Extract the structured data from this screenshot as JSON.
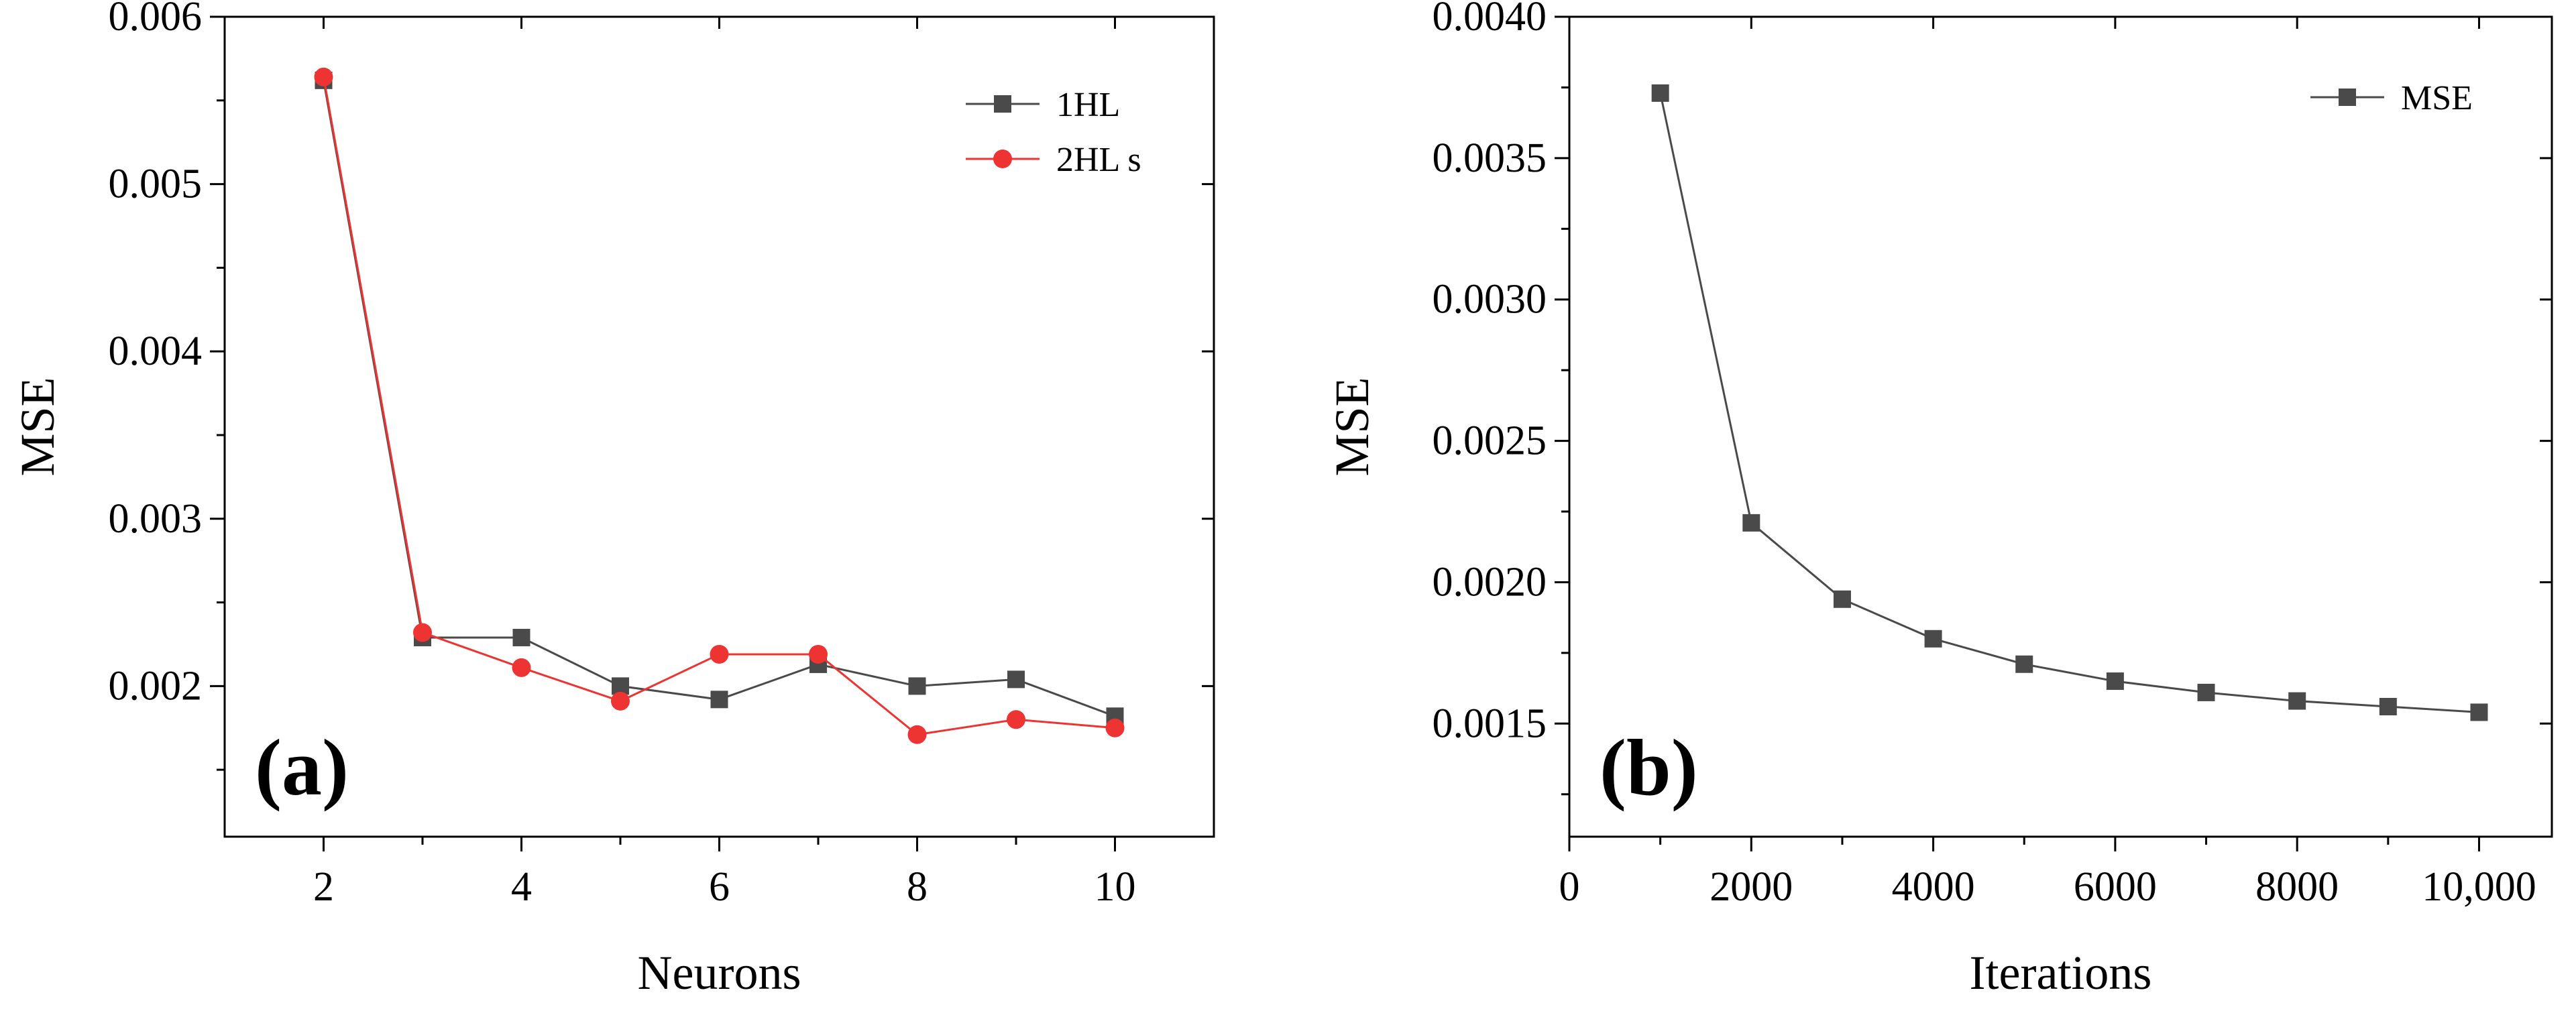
{
  "chart_data": [
    {
      "type": "line",
      "panel_label": "(a)",
      "xlabel": "Neurons",
      "ylabel": "MSE",
      "xlim": [
        1,
        11
      ],
      "ylim": [
        0.0011,
        0.006
      ],
      "x_ticks": [
        2,
        4,
        6,
        8,
        10
      ],
      "x_tick_labels": [
        "2",
        "4",
        "6",
        "8",
        "10"
      ],
      "y_ticks": [
        0.002,
        0.003,
        0.004,
        0.005,
        0.006
      ],
      "y_tick_labels": [
        "0.002",
        "0.003",
        "0.004",
        "0.005",
        "0.006"
      ],
      "legend_position": "top-right",
      "series": [
        {
          "name": "1HL",
          "color": "#4a4a4a",
          "marker": "square",
          "x": [
            2,
            3,
            4,
            5,
            6,
            7,
            8,
            9,
            10
          ],
          "values": [
            0.00562,
            0.00229,
            0.00229,
            0.002,
            0.00192,
            0.00213,
            0.002,
            0.00204,
            0.00182
          ]
        },
        {
          "name": "2HL s",
          "color": "#ee3333",
          "marker": "circle",
          "x": [
            2,
            3,
            4,
            5,
            6,
            7,
            8,
            9,
            10
          ],
          "values": [
            0.00564,
            0.00232,
            0.00211,
            0.00191,
            0.00219,
            0.00219,
            0.00171,
            0.0018,
            0.00175
          ]
        }
      ]
    },
    {
      "type": "line",
      "panel_label": "(b)",
      "xlabel": "Iterations",
      "ylabel": "MSE",
      "xlim": [
        0,
        10800
      ],
      "ylim": [
        0.0011,
        0.004
      ],
      "x_ticks": [
        0,
        2000,
        4000,
        6000,
        8000,
        10000
      ],
      "x_tick_labels": [
        "0",
        "2000",
        "4000",
        "6000",
        "8000",
        "10,000"
      ],
      "y_ticks": [
        0.0015,
        0.002,
        0.0025,
        0.003,
        0.0035,
        0.004
      ],
      "y_tick_labels": [
        "0.0015",
        "0.0020",
        "0.0025",
        "0.0030",
        "0.0035",
        "0.0040"
      ],
      "legend_position": "top-right",
      "series": [
        {
          "name": "MSE",
          "color": "#4a4a4a",
          "marker": "square",
          "x": [
            1000,
            2000,
            3000,
            4000,
            5000,
            6000,
            7000,
            8000,
            9000,
            10000
          ],
          "values": [
            0.00373,
            0.00221,
            0.00194,
            0.0018,
            0.00171,
            0.00165,
            0.00161,
            0.00158,
            0.00156,
            0.00154
          ]
        }
      ]
    }
  ]
}
